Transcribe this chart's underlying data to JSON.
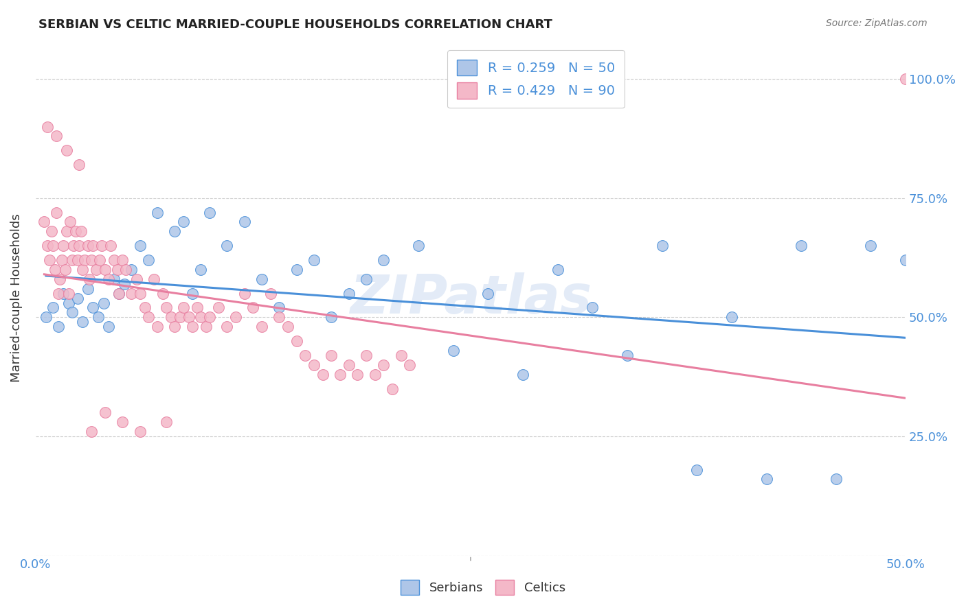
{
  "title": "SERBIAN VS CELTIC MARRIED-COUPLE HOUSEHOLDS CORRELATION CHART",
  "source": "Source: ZipAtlas.com",
  "ylabel": "Married-couple Households",
  "watermark": "ZIPatlas",
  "xlim": [
    0.0,
    0.5
  ],
  "ylim": [
    0.0,
    1.08
  ],
  "serbian_R": 0.259,
  "serbian_N": 50,
  "celtic_R": 0.429,
  "celtic_N": 90,
  "serbian_color": "#aec6e8",
  "celtic_color": "#f4b8c8",
  "serbian_line_color": "#4a90d9",
  "celtic_line_color": "#e87fa0",
  "title_color": "#222222",
  "axis_color": "#4a90d9",
  "legend_label_serbian": "R = 0.259   N = 50",
  "legend_label_celtic": "R = 0.429   N = 90",
  "background_color": "#ffffff",
  "grid_color": "#cccccc",
  "serbian_x": [
    0.006,
    0.01,
    0.013,
    0.016,
    0.019,
    0.021,
    0.024,
    0.027,
    0.03,
    0.033,
    0.036,
    0.039,
    0.042,
    0.045,
    0.048,
    0.051,
    0.055,
    0.06,
    0.065,
    0.07,
    0.08,
    0.085,
    0.09,
    0.095,
    0.1,
    0.11,
    0.12,
    0.13,
    0.14,
    0.15,
    0.16,
    0.17,
    0.18,
    0.19,
    0.2,
    0.22,
    0.24,
    0.26,
    0.28,
    0.3,
    0.32,
    0.34,
    0.36,
    0.38,
    0.4,
    0.42,
    0.44,
    0.46,
    0.48,
    0.5
  ],
  "serbian_y": [
    0.5,
    0.52,
    0.48,
    0.55,
    0.53,
    0.51,
    0.54,
    0.49,
    0.56,
    0.52,
    0.5,
    0.53,
    0.48,
    0.58,
    0.55,
    0.57,
    0.6,
    0.65,
    0.62,
    0.72,
    0.68,
    0.7,
    0.55,
    0.6,
    0.72,
    0.65,
    0.7,
    0.58,
    0.52,
    0.6,
    0.62,
    0.5,
    0.55,
    0.58,
    0.62,
    0.65,
    0.43,
    0.55,
    0.38,
    0.6,
    0.52,
    0.42,
    0.65,
    0.18,
    0.5,
    0.16,
    0.65,
    0.16,
    0.65,
    0.62
  ],
  "celtic_x": [
    0.005,
    0.007,
    0.008,
    0.009,
    0.01,
    0.011,
    0.012,
    0.013,
    0.014,
    0.015,
    0.016,
    0.017,
    0.018,
    0.019,
    0.02,
    0.021,
    0.022,
    0.023,
    0.024,
    0.025,
    0.026,
    0.027,
    0.028,
    0.03,
    0.031,
    0.032,
    0.033,
    0.035,
    0.037,
    0.038,
    0.04,
    0.042,
    0.043,
    0.045,
    0.047,
    0.048,
    0.05,
    0.052,
    0.055,
    0.058,
    0.06,
    0.063,
    0.065,
    0.068,
    0.07,
    0.073,
    0.075,
    0.078,
    0.08,
    0.083,
    0.085,
    0.088,
    0.09,
    0.093,
    0.095,
    0.098,
    0.1,
    0.105,
    0.11,
    0.115,
    0.12,
    0.125,
    0.13,
    0.135,
    0.14,
    0.145,
    0.15,
    0.155,
    0.16,
    0.165,
    0.17,
    0.175,
    0.18,
    0.185,
    0.19,
    0.195,
    0.2,
    0.205,
    0.21,
    0.215,
    0.007,
    0.012,
    0.018,
    0.025,
    0.032,
    0.04,
    0.05,
    0.06,
    0.075,
    0.5
  ],
  "celtic_y": [
    0.7,
    0.65,
    0.62,
    0.68,
    0.65,
    0.6,
    0.72,
    0.55,
    0.58,
    0.62,
    0.65,
    0.6,
    0.68,
    0.55,
    0.7,
    0.62,
    0.65,
    0.68,
    0.62,
    0.65,
    0.68,
    0.6,
    0.62,
    0.65,
    0.58,
    0.62,
    0.65,
    0.6,
    0.62,
    0.65,
    0.6,
    0.58,
    0.65,
    0.62,
    0.6,
    0.55,
    0.62,
    0.6,
    0.55,
    0.58,
    0.55,
    0.52,
    0.5,
    0.58,
    0.48,
    0.55,
    0.52,
    0.5,
    0.48,
    0.5,
    0.52,
    0.5,
    0.48,
    0.52,
    0.5,
    0.48,
    0.5,
    0.52,
    0.48,
    0.5,
    0.55,
    0.52,
    0.48,
    0.55,
    0.5,
    0.48,
    0.45,
    0.42,
    0.4,
    0.38,
    0.42,
    0.38,
    0.4,
    0.38,
    0.42,
    0.38,
    0.4,
    0.35,
    0.42,
    0.4,
    0.9,
    0.88,
    0.85,
    0.82,
    0.26,
    0.3,
    0.28,
    0.26,
    0.28,
    1.0
  ]
}
